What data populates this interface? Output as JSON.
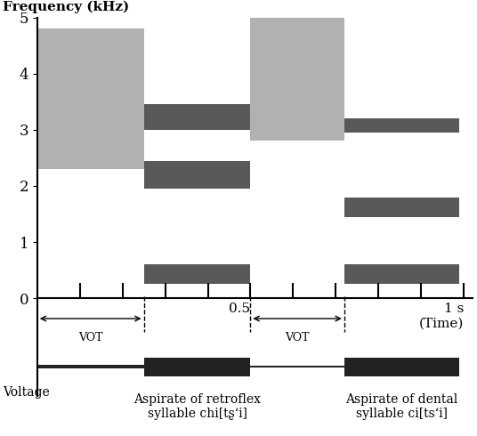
{
  "chart_data": {
    "type": "spectrogram",
    "y_label": "Frequency (kHz)",
    "waveform_label": "Voltage",
    "xlim": [
      0,
      1.02
    ],
    "ylim": [
      0,
      5
    ],
    "yticks": [
      0,
      1,
      2,
      3,
      4,
      5
    ],
    "xticks": [
      {
        "value": 0.1,
        "label": null
      },
      {
        "value": 0.2,
        "label": null
      },
      {
        "value": 0.3,
        "label": null
      },
      {
        "value": 0.4,
        "label": null
      },
      0.5,
      {
        "value": 0.6,
        "label": null
      },
      {
        "value": 0.7,
        "label": null
      },
      {
        "value": 0.8,
        "label": null
      },
      {
        "value": 0.9,
        "label": null
      },
      {
        "value": 1.0,
        "label": "1 s\n(Time)"
      }
    ],
    "color": "#222222",
    "segments": [
      {
        "label": "Aspirate of retroflex\nsyllable chi[tʂʻi]",
        "vot_label": "VOT",
        "aspiration": [
          0,
          0.25
        ],
        "noise_bands": [
          [
            2.3,
            4.8
          ]
        ],
        "vowel": [
          0.25,
          0.5
        ],
        "formants": [
          [
            0.25,
            0.6
          ],
          [
            1.95,
            2.45
          ],
          [
            3.0,
            3.45
          ]
        ],
        "waveform_amplitude": {
          "aspiration": 0.15,
          "vowel": 1.0
        }
      },
      {
        "label": "Aspirate of dental\nsyllable ci[tsʻi]",
        "vot_label": "VOT",
        "aspiration": [
          0.5,
          0.72
        ],
        "noise_bands": [
          [
            2.8,
            5.0
          ]
        ],
        "vowel": [
          0.72,
          0.99
        ],
        "formants": [
          [
            0.25,
            0.6
          ],
          [
            1.45,
            1.8
          ],
          [
            2.95,
            3.2
          ]
        ],
        "waveform_amplitude": {
          "aspiration": 0.12,
          "vowel": 1.0
        }
      }
    ]
  }
}
